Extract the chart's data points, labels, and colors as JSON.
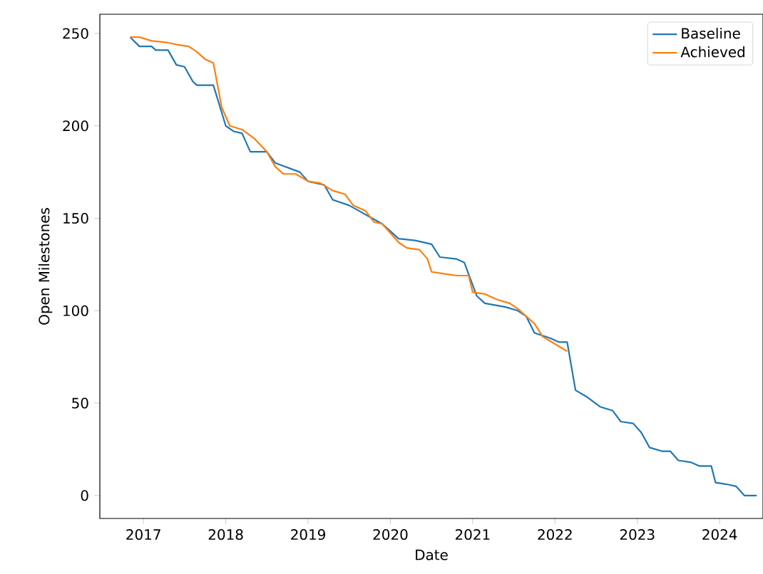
{
  "chart_data": {
    "type": "line",
    "xlabel": "Date",
    "ylabel": "Open Milestones",
    "xlim": [
      "2016-06-21",
      "2024-07-12"
    ],
    "ylim": [
      -12.4,
      260.4
    ],
    "xticks": [
      "2017",
      "2018",
      "2019",
      "2020",
      "2021",
      "2022",
      "2023",
      "2024"
    ],
    "yticks": [
      0,
      50,
      100,
      150,
      200,
      250
    ],
    "legend": "top right",
    "grid": false,
    "marker": "none",
    "line_style": "solid",
    "series": [
      {
        "name": "Baseline",
        "color": "#1f77b4",
        "x": [
          "2016-11-03",
          "2016-12-14",
          "2017-02-06",
          "2017-02-24",
          "2017-04-20",
          "2017-05-27",
          "2017-07-02",
          "2017-08-08",
          "2017-08-26",
          "2017-11-07",
          "2018-01-01",
          "2018-02-06",
          "2018-03-14",
          "2018-04-20",
          "2018-07-02",
          "2018-08-08",
          "2018-11-25",
          "2019-01-01",
          "2019-03-14",
          "2019-04-20",
          "2019-07-02",
          "2019-09-13",
          "2019-11-25",
          "2020-01-01",
          "2020-02-06",
          "2020-04-20",
          "2020-07-02",
          "2020-08-08",
          "2020-10-20",
          "2020-11-25",
          "2021-01-19",
          "2021-02-24",
          "2021-05-27",
          "2021-07-20",
          "2021-08-26",
          "2021-10-02",
          "2021-12-14",
          "2022-01-19",
          "2022-02-24",
          "2022-04-02",
          "2022-05-27",
          "2022-07-20",
          "2022-09-13",
          "2022-10-20",
          "2022-12-14",
          "2023-01-19",
          "2023-02-24",
          "2023-04-20",
          "2023-05-27",
          "2023-07-02",
          "2023-08-26",
          "2023-10-02",
          "2023-11-25",
          "2023-12-14",
          "2024-02-06",
          "2024-03-14",
          "2024-04-20",
          "2024-06-14"
        ],
        "values": [
          248,
          243,
          243,
          241,
          241,
          233,
          232,
          224,
          222,
          222,
          200,
          197,
          196,
          186,
          186,
          180,
          175,
          170,
          168,
          160,
          157,
          152,
          147,
          143,
          139,
          138,
          136,
          129,
          128,
          126,
          108,
          104,
          102,
          100,
          97,
          88,
          85,
          83,
          83,
          57,
          53,
          48,
          46,
          40,
          39,
          34,
          26,
          24,
          24,
          19,
          18,
          16,
          16,
          7,
          6,
          5,
          0,
          0
        ]
      },
      {
        "name": "Achieved",
        "color": "#ff7f0e",
        "x": [
          "2016-11-03",
          "2016-12-14",
          "2017-02-06",
          "2017-04-20",
          "2017-05-27",
          "2017-07-20",
          "2017-08-26",
          "2017-10-02",
          "2017-11-07",
          "2017-12-14",
          "2018-01-19",
          "2018-03-14",
          "2018-05-09",
          "2018-07-02",
          "2018-08-08",
          "2018-09-13",
          "2018-11-07",
          "2019-01-01",
          "2019-02-24",
          "2019-04-20",
          "2019-06-14",
          "2019-07-20",
          "2019-09-13",
          "2019-10-20",
          "2019-11-25",
          "2020-01-01",
          "2020-02-06",
          "2020-03-14",
          "2020-05-09",
          "2020-06-14",
          "2020-07-02",
          "2020-08-26",
          "2020-10-20",
          "2020-12-14",
          "2021-01-01",
          "2021-02-24",
          "2021-04-20",
          "2021-06-14",
          "2021-07-20",
          "2021-08-26",
          "2021-10-02",
          "2021-11-07",
          "2022-01-01",
          "2022-02-24"
        ],
        "values": [
          248,
          248,
          246,
          245,
          244,
          243,
          240,
          236,
          234,
          210,
          200,
          198,
          193,
          186,
          178,
          174,
          174,
          170,
          169,
          165,
          163,
          157,
          154,
          148,
          147,
          142,
          137,
          134,
          133,
          128,
          121,
          120,
          119,
          119,
          110,
          109,
          106,
          104,
          101,
          97,
          93,
          86,
          82,
          78
        ]
      }
    ]
  }
}
